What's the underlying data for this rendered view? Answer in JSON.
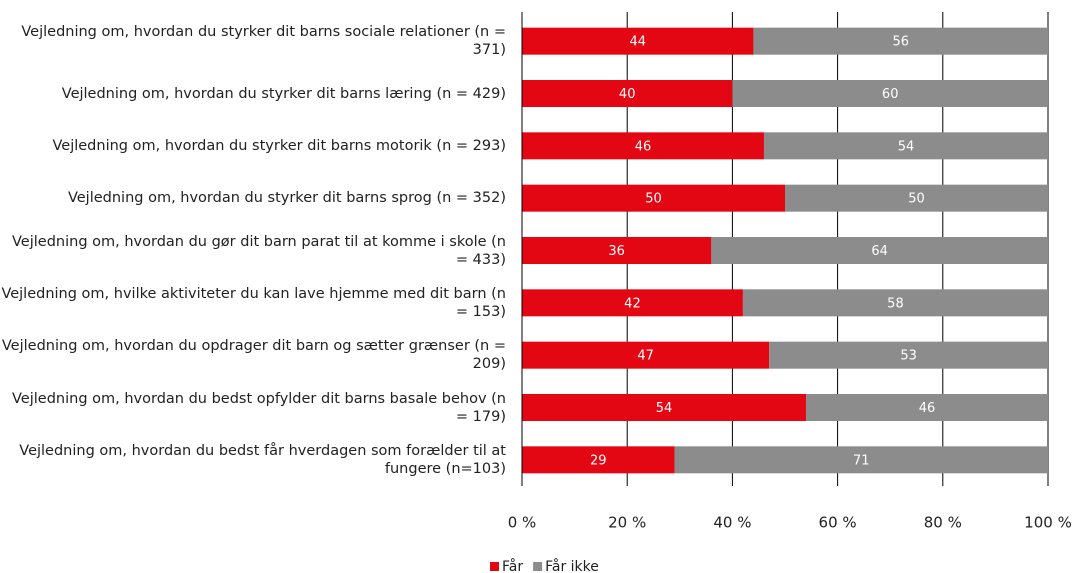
{
  "chart_data": {
    "type": "stacked_barh",
    "categories": [
      "Vejledning om, hvordan du styrker dit barns sociale relationer (n = 371)",
      "Vejledning om, hvordan du styrker dit barns læring (n = 429)",
      "Vejledning om, hvordan du styrker dit barns motorik (n = 293)",
      "Vejledning om, hvordan du styrker dit barns sprog (n = 352)",
      "Vejledning om, hvordan du gør dit barn parat til at komme i skole (n = 433)",
      "Vejledning om, hvilke aktiviteter du kan lave hjemme med dit barn (n = 153)",
      "Vejledning om, hvordan du opdrager dit barn og sætter grænser (n = 209)",
      "Vejledning om, hvordan du bedst opfylder dit barns basale behov (n = 179)",
      "Vejledning om, hvordan du bedst får hverdagen som forælder til at fungere (n=103)"
    ],
    "series": [
      {
        "name": "Får",
        "color": "#e30613",
        "values": [
          44,
          40,
          46,
          50,
          36,
          42,
          47,
          54,
          29
        ]
      },
      {
        "name": "Får ikke",
        "color": "#8c8c8c",
        "values": [
          56,
          60,
          54,
          50,
          64,
          58,
          53,
          46,
          71
        ]
      }
    ],
    "xlim": [
      0,
      100
    ],
    "xticks": [
      {
        "value": 0,
        "label": "0 %"
      },
      {
        "value": 20,
        "label": "20 %"
      },
      {
        "value": 40,
        "label": "40 %"
      },
      {
        "value": 60,
        "label": "60 %"
      },
      {
        "value": 80,
        "label": "80 %"
      },
      {
        "value": 100,
        "label": "100 %"
      }
    ],
    "grid": true,
    "legend": "bottom"
  }
}
